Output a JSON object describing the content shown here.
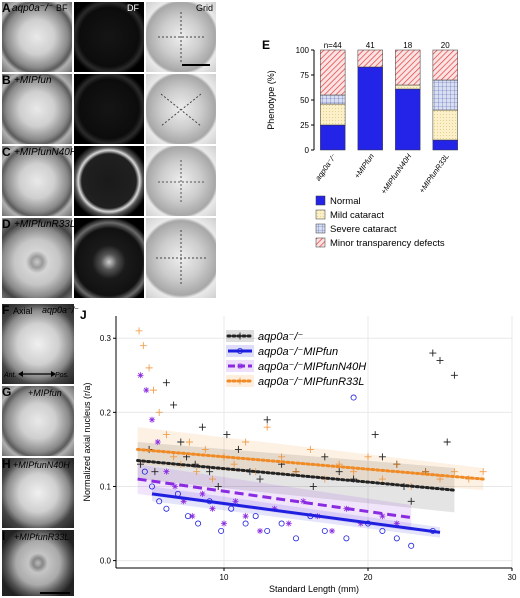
{
  "figure": {
    "panel_letters": [
      "A",
      "B",
      "C",
      "D",
      "E",
      "F",
      "G",
      "H",
      "I",
      "J"
    ],
    "column_headers": {
      "bf": "BF",
      "df": "DF",
      "grid": "Grid"
    },
    "row_tags": {
      "A": "aqp0a⁻/⁻",
      "B": "+MIPfun",
      "C": "+MIPfunN40H",
      "D": "+MIPfunR33L",
      "F": "aqp0a⁻/⁻",
      "G": "+MIPfun",
      "H": "+MIPfunN40H",
      "I": "+MIPfunR33L"
    },
    "axial_label": "Axial",
    "ant_label": "Ant.",
    "pos_label": "Pos."
  },
  "chart_data": [
    {
      "type": "bar",
      "panel": "E",
      "stacked": true,
      "ylabel": "Phenotype (%)",
      "xlabel": "",
      "ylim": [
        0,
        100
      ],
      "yticks": [
        "0",
        "25",
        "50",
        "75",
        "100"
      ],
      "categories": [
        "aqp0a⁻/⁻",
        "+MIPfun",
        "+MIPfunN40H",
        "+MIPfunR33L"
      ],
      "counts": [
        "n=44",
        "41",
        "18",
        "20"
      ],
      "series": [
        {
          "name": "Normal",
          "color": "#2323e6",
          "values": [
            25,
            83,
            61,
            10
          ]
        },
        {
          "name": "Mild cataract",
          "color": "#f5e6b0",
          "values": [
            21,
            0,
            4,
            30
          ]
        },
        {
          "name": "Severe cataract",
          "color": "#d5dcf0",
          "values": [
            9,
            0,
            0,
            30
          ]
        },
        {
          "name": "Minor transparency defects",
          "color": "#f07070",
          "values": [
            45,
            17,
            35,
            30
          ]
        }
      ],
      "legend_position": "bottom"
    },
    {
      "type": "scatter",
      "panel": "J",
      "xlabel": "Standard Length (mm)",
      "ylabel": "Normalized axial nucleus (r/a)",
      "xlim": [
        2.5,
        30
      ],
      "ylim": [
        -0.01,
        0.33
      ],
      "xticks": [
        "10",
        "20",
        "30"
      ],
      "yticks": [
        "0.0",
        "0.1",
        "0.2",
        "0.3"
      ],
      "legend_position": "top-center",
      "series": [
        {
          "name": "aqp0a⁻/⁻",
          "color": "#222222",
          "marker": "plus",
          "line": "dotted",
          "fit": [
            [
              4,
              0.135
            ],
            [
              26,
              0.095
            ]
          ],
          "band": [
            [
              4,
              0.16,
              0.11
            ],
            [
              26,
              0.125,
              0.065
            ]
          ],
          "points": [
            [
              4.2,
              0.13
            ],
            [
              4.8,
              0.15
            ],
            [
              5.2,
              0.12
            ],
            [
              6.0,
              0.24
            ],
            [
              6.5,
              0.21
            ],
            [
              7.0,
              0.16
            ],
            [
              7.4,
              0.14
            ],
            [
              8.0,
              0.13
            ],
            [
              8.5,
              0.18
            ],
            [
              9.0,
              0.12
            ],
            [
              9.6,
              0.1
            ],
            [
              10.2,
              0.17
            ],
            [
              11.0,
              0.15
            ],
            [
              11.8,
              0.12
            ],
            [
              12.5,
              0.11
            ],
            [
              13.0,
              0.19
            ],
            [
              14.0,
              0.13
            ],
            [
              15.0,
              0.12
            ],
            [
              16.2,
              0.1
            ],
            [
              17.0,
              0.14
            ],
            [
              18.0,
              0.12
            ],
            [
              19.0,
              0.11
            ],
            [
              20.5,
              0.17
            ],
            [
              21.0,
              0.14
            ],
            [
              22.0,
              0.13
            ],
            [
              23.0,
              0.08
            ],
            [
              24.5,
              0.28
            ],
            [
              25.0,
              0.27
            ],
            [
              26.0,
              0.25
            ],
            [
              25.5,
              0.16
            ],
            [
              24.0,
              0.12
            ],
            [
              22.5,
              0.1
            ]
          ]
        },
        {
          "name": "aqp0a⁻/⁻MIPfun",
          "color": "#1f1fe0",
          "marker": "circle",
          "line": "solid",
          "fit": [
            [
              5,
              0.09
            ],
            [
              25,
              0.038
            ]
          ],
          "band": [
            [
              5,
              0.1,
              0.08
            ],
            [
              25,
              0.045,
              0.031
            ]
          ],
          "points": [
            [
              4.5,
              0.12
            ],
            [
              5.0,
              0.1
            ],
            [
              5.5,
              0.08
            ],
            [
              6.0,
              0.07
            ],
            [
              6.8,
              0.09
            ],
            [
              7.5,
              0.06
            ],
            [
              8.2,
              0.05
            ],
            [
              9.0,
              0.08
            ],
            [
              9.8,
              0.04
            ],
            [
              10.5,
              0.07
            ],
            [
              11.5,
              0.05
            ],
            [
              12.2,
              0.06
            ],
            [
              13.0,
              0.04
            ],
            [
              14.0,
              0.05
            ],
            [
              15.0,
              0.03
            ],
            [
              16.0,
              0.06
            ],
            [
              17.0,
              0.04
            ],
            [
              18.5,
              0.03
            ],
            [
              19.0,
              0.22
            ],
            [
              20.0,
              0.05
            ],
            [
              21.0,
              0.04
            ],
            [
              22.0,
              0.03
            ],
            [
              23.0,
              0.02
            ],
            [
              24.5,
              0.04
            ]
          ]
        },
        {
          "name": "aqp0a⁻/⁻MIPfunN40H",
          "color": "#8a2be2",
          "marker": "star",
          "line": "dashed",
          "fit": [
            [
              4,
              0.11
            ],
            [
              23,
              0.058
            ]
          ],
          "band": [
            [
              4,
              0.13,
              0.09
            ],
            [
              23,
              0.075,
              0.04
            ]
          ],
          "points": [
            [
              4.2,
              0.25
            ],
            [
              4.6,
              0.23
            ],
            [
              5.0,
              0.19
            ],
            [
              5.4,
              0.16
            ],
            [
              6.0,
              0.12
            ],
            [
              6.6,
              0.1
            ],
            [
              7.2,
              0.08
            ],
            [
              7.8,
              0.06
            ],
            [
              8.5,
              0.09
            ],
            [
              9.2,
              0.07
            ],
            [
              10.0,
              0.05
            ],
            [
              10.8,
              0.08
            ],
            [
              11.5,
              0.06
            ],
            [
              12.5,
              0.04
            ],
            [
              13.5,
              0.07
            ],
            [
              14.5,
              0.05
            ],
            [
              15.5,
              0.08
            ],
            [
              16.5,
              0.06
            ],
            [
              17.5,
              0.04
            ],
            [
              18.5,
              0.07
            ],
            [
              19.5,
              0.05
            ],
            [
              21.0,
              0.06
            ],
            [
              22.0,
              0.05
            ]
          ]
        },
        {
          "name": "aqp0a⁻/⁻MIPfunR33L",
          "color": "#f08a24",
          "marker": "plus-circle",
          "line": "dotted",
          "fit": [
            [
              4,
              0.15
            ],
            [
              28,
              0.11
            ]
          ],
          "band": [
            [
              4,
              0.18,
              0.13
            ],
            [
              28,
              0.125,
              0.095
            ]
          ],
          "points": [
            [
              4.1,
              0.31
            ],
            [
              4.4,
              0.29
            ],
            [
              4.8,
              0.26
            ],
            [
              5.1,
              0.23
            ],
            [
              5.5,
              0.2
            ],
            [
              6.0,
              0.17
            ],
            [
              6.5,
              0.14
            ],
            [
              7.0,
              0.13
            ],
            [
              7.6,
              0.16
            ],
            [
              8.1,
              0.12
            ],
            [
              8.7,
              0.15
            ],
            [
              9.2,
              0.11
            ],
            [
              10.0,
              0.14
            ],
            [
              10.7,
              0.13
            ],
            [
              11.5,
              0.16
            ],
            [
              12.2,
              0.12
            ],
            [
              13.0,
              0.18
            ],
            [
              14.0,
              0.14
            ],
            [
              15.0,
              0.12
            ],
            [
              16.0,
              0.15
            ],
            [
              17.0,
              0.11
            ],
            [
              18.0,
              0.13
            ],
            [
              19.0,
              0.12
            ],
            [
              20.0,
              0.14
            ],
            [
              21.0,
              0.11
            ],
            [
              22.0,
              0.13
            ],
            [
              23.0,
              0.1
            ],
            [
              24.0,
              0.12
            ],
            [
              25.0,
              0.11
            ],
            [
              26.0,
              0.12
            ],
            [
              27.0,
              0.11
            ],
            [
              28.0,
              0.12
            ]
          ]
        }
      ]
    }
  ]
}
